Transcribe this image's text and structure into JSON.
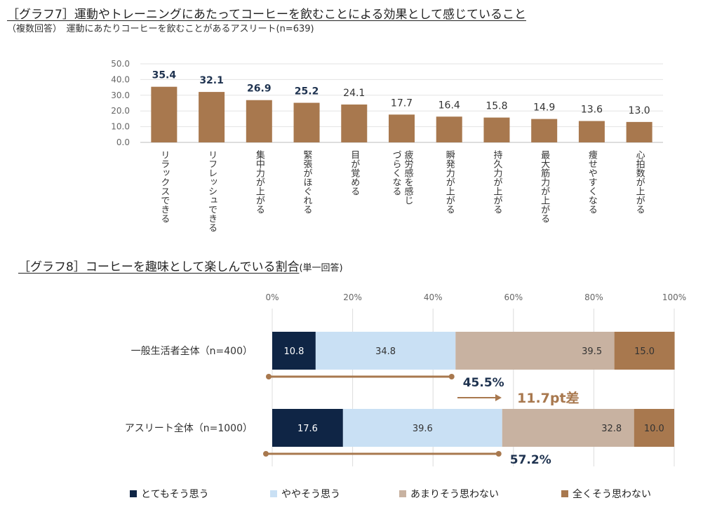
{
  "graph7": {
    "title": "［グラフ7］運動やトレーニングにあたってコーヒーを飲むことによる効果として感じていること",
    "subtitle": "（複数回答）　運動にあたりコーヒーを飲むことがあるアスリート(n=639)"
  },
  "graph8": {
    "title": "［グラフ8］コーヒーを趣味として楽しんでいる割合",
    "title_suffix": "(単一回答)",
    "diff_label": "11.7pt差"
  },
  "colors": {
    "bar": "#a8784e",
    "very": "#0f2545",
    "somewhat": "#c9e0f4",
    "not_much": "#c8b2a1",
    "not_at_all": "#a8784e",
    "bracket": "#a8784e",
    "diff_text": "#a8784e",
    "summary_text": "#1f3350"
  },
  "chart_data": [
    {
      "type": "bar",
      "categories": [
        "リラックスできる",
        "リフレッシュできる",
        "集中力が上がる",
        "緊張がほぐれる",
        "目が覚める",
        "疲労感を感じづらくなる",
        "瞬発力が上がる",
        "持久力が上がる",
        "最大筋力が上がる",
        "痩せやすくなる",
        "心拍数が上がる"
      ],
      "category_lines": [
        [
          "リラックスできる"
        ],
        [
          "リフレッシュできる"
        ],
        [
          "集中力が上がる"
        ],
        [
          "緊張がほぐれる"
        ],
        [
          "目が覚める"
        ],
        [
          "疲労感を感じ",
          "づらくなる"
        ],
        [
          "瞬発力が上がる"
        ],
        [
          "持久力が上がる"
        ],
        [
          "最大筋力が上がる"
        ],
        [
          "痩せやすくなる"
        ],
        [
          "心拍数が上がる"
        ]
      ],
      "values": [
        35.4,
        32.1,
        26.9,
        25.2,
        24.1,
        17.7,
        16.4,
        15.8,
        14.9,
        13.6,
        13.0
      ],
      "value_labels": [
        "35.4",
        "32.1",
        "26.9",
        "25.2",
        "24.1",
        "17.7",
        "16.4",
        "15.8",
        "14.9",
        "13.6",
        "13.0"
      ],
      "bold_labels": [
        true,
        true,
        true,
        true,
        false,
        false,
        false,
        false,
        false,
        false,
        false
      ],
      "yticks": [
        "0.0",
        "10.0",
        "20.0",
        "30.0",
        "40.0",
        "50.0"
      ],
      "ylim": [
        0,
        50
      ],
      "grid": true
    },
    {
      "type": "bar",
      "orientation": "horizontal-stacked-100",
      "categories": [
        "一般生活者全体（n=400）",
        "アスリート全体（n=1000）"
      ],
      "series": [
        {
          "name": "とてもそう思う",
          "values": [
            10.8,
            17.6
          ]
        },
        {
          "name": "ややそう思う",
          "values": [
            34.8,
            39.6
          ]
        },
        {
          "name": "あまりそう思わない",
          "values": [
            39.5,
            32.8
          ]
        },
        {
          "name": "全くそう思わない",
          "values": [
            15.0,
            10.0
          ]
        }
      ],
      "summary_labels": [
        "45.5%",
        "57.2%"
      ],
      "summary_values": [
        45.5,
        57.2
      ],
      "xticks": [
        "0%",
        "20%",
        "40%",
        "60%",
        "80%",
        "100%"
      ],
      "xlim": [
        0,
        100
      ],
      "legend_position": "bottom",
      "grid": true
    }
  ]
}
